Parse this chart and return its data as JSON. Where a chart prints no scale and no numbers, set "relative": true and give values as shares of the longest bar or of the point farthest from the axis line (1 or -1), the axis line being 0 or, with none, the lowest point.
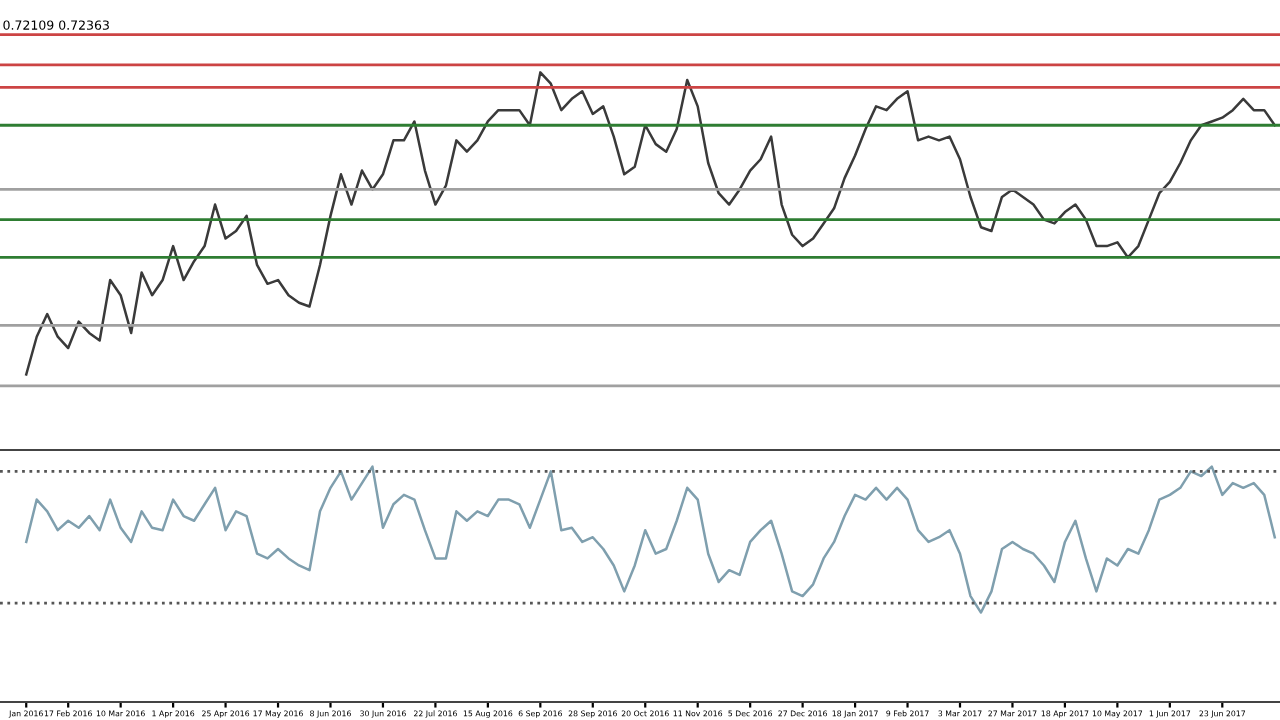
{
  "chart_data": [
    {
      "type": "line",
      "title": "0.72109 0.72363",
      "relative": true,
      "tick_labels": false,
      "grid": false,
      "legend": false,
      "categories": [
        null,
        null,
        null,
        null,
        null,
        null,
        null,
        null,
        null,
        null,
        null,
        null,
        null,
        null,
        null,
        null,
        null,
        null,
        null,
        null,
        null,
        null,
        null,
        null,
        null,
        null,
        null,
        null,
        null,
        null,
        null,
        null,
        null,
        null,
        null,
        null,
        null,
        null,
        null,
        null,
        null,
        null,
        null,
        null,
        null,
        null,
        null,
        null,
        null,
        null,
        null,
        null,
        null,
        null,
        null,
        null,
        null,
        null,
        null,
        null,
        null,
        null,
        null,
        null,
        null,
        null,
        null,
        null,
        null,
        null,
        null,
        null,
        null,
        null,
        null,
        null,
        null,
        null,
        null,
        null,
        null,
        null,
        null,
        null,
        null,
        null,
        null,
        null,
        null,
        null,
        null,
        null,
        null,
        null,
        null,
        null,
        null,
        null,
        null,
        null,
        null,
        null,
        null,
        null,
        null,
        null,
        null,
        null,
        null,
        null,
        null,
        null,
        null,
        null,
        null,
        null,
        null,
        null,
        null,
        null
      ],
      "series": [
        {
          "color": "#3a3a3a",
          "values": [
            0.2,
            0.3,
            0.36,
            0.3,
            0.27,
            0.34,
            0.31,
            0.29,
            0.45,
            0.41,
            0.31,
            0.47,
            0.41,
            0.45,
            0.54,
            0.45,
            0.5,
            0.54,
            0.65,
            0.56,
            0.58,
            0.62,
            0.49,
            0.44,
            0.45,
            0.41,
            0.39,
            0.38,
            0.49,
            0.62,
            0.73,
            0.65,
            0.74,
            0.69,
            0.73,
            0.82,
            0.82,
            0.87,
            0.74,
            0.65,
            0.7,
            0.82,
            0.79,
            0.82,
            0.87,
            0.9,
            0.9,
            0.9,
            0.86,
            1,
            0.97,
            0.9,
            0.93,
            0.95,
            0.89,
            0.91,
            0.83,
            0.73,
            0.75,
            0.86,
            0.81,
            0.79,
            0.85,
            0.98,
            0.91,
            0.76,
            0.68,
            0.65,
            0.69,
            0.74,
            0.77,
            0.83,
            0.65,
            0.57,
            0.54,
            0.56,
            0.6,
            0.64,
            0.72,
            0.78,
            0.85,
            0.91,
            0.9,
            0.93,
            0.95,
            0.82,
            0.83,
            0.82,
            0.83,
            0.77,
            0.67,
            0.59,
            0.58,
            0.67,
            0.69,
            0.67,
            0.65,
            0.61,
            0.6,
            0.63,
            0.65,
            0.61,
            0.54,
            0.54,
            0.55,
            0.51,
            0.54,
            0.61,
            0.68,
            0.71,
            0.76,
            0.82,
            0.86,
            0.87,
            0.88,
            0.9,
            0.93,
            0.9,
            0.9,
            0.86
          ]
        }
      ],
      "ref_lines": [
        {
          "axis": "y",
          "value": 1.1,
          "color": "#cc4444"
        },
        {
          "axis": "y",
          "value": 1.02,
          "color": "#cc4444"
        },
        {
          "axis": "y",
          "value": 0.96,
          "color": "#cc4444"
        },
        {
          "axis": "y",
          "value": 0.86,
          "color": "#2e7d32"
        },
        {
          "axis": "y",
          "value": 0.69,
          "color": "#a0a0a0"
        },
        {
          "axis": "y",
          "value": 0.61,
          "color": "#2e7d32"
        },
        {
          "axis": "y",
          "value": 0.51,
          "color": "#2e7d32"
        },
        {
          "axis": "y",
          "value": 0.33,
          "color": "#a0a0a0"
        },
        {
          "axis": "y",
          "value": 0.17,
          "color": "#a0a0a0"
        }
      ]
    },
    {
      "type": "line",
      "relative": true,
      "tick_labels": "x",
      "grid": false,
      "legend": false,
      "categories": [
        "Jan 2016",
        null,
        null,
        null,
        "17 Feb 2016",
        null,
        null,
        null,
        null,
        "10 Mar 2016",
        null,
        null,
        null,
        null,
        "1 Apr 2016",
        null,
        null,
        null,
        null,
        "25 Apr 2016",
        null,
        null,
        null,
        null,
        "17 May 2016",
        null,
        null,
        null,
        null,
        "8 Jun 2016",
        null,
        null,
        null,
        null,
        "30 Jun 2016",
        null,
        null,
        null,
        null,
        "22 Jul 2016",
        null,
        null,
        null,
        null,
        "15 Aug 2016",
        null,
        null,
        null,
        null,
        "6 Sep 2016",
        null,
        null,
        null,
        null,
        "28 Sep 2016",
        null,
        null,
        null,
        null,
        "20 Oct 2016",
        null,
        null,
        null,
        null,
        "11 Nov 2016",
        null,
        null,
        null,
        null,
        "5 Dec 2016",
        null,
        null,
        null,
        null,
        "27 Dec 2016",
        null,
        null,
        null,
        null,
        "18 Jan 2017",
        null,
        null,
        null,
        null,
        "9 Feb 2017",
        null,
        null,
        null,
        null,
        "3 Mar 2017",
        null,
        null,
        null,
        null,
        "27 Mar 2017",
        null,
        null,
        null,
        null,
        "18 Apr 2017",
        null,
        null,
        null,
        null,
        "10 May 2017",
        null,
        null,
        null,
        null,
        "1 Jun 2017",
        null,
        null,
        null,
        null,
        "23 Jun 2017",
        null,
        null,
        null,
        null,
        null
      ],
      "series": [
        {
          "color": "#7f9fae",
          "values": [
            0.68,
            0.86,
            0.81,
            0.73,
            0.77,
            0.74,
            0.79,
            0.73,
            0.86,
            0.74,
            0.68,
            0.81,
            0.74,
            0.73,
            0.86,
            0.79,
            0.77,
            0.84,
            0.91,
            0.73,
            0.81,
            0.79,
            0.63,
            0.61,
            0.65,
            0.61,
            0.58,
            0.56,
            0.81,
            0.91,
            0.98,
            0.86,
            0.93,
            1,
            0.74,
            0.84,
            0.88,
            0.86,
            0.73,
            0.61,
            0.61,
            0.81,
            0.77,
            0.81,
            0.79,
            0.86,
            0.86,
            0.84,
            0.74,
            0.86,
            0.98,
            0.73,
            0.74,
            0.68,
            0.7,
            0.65,
            0.58,
            0.47,
            0.58,
            0.73,
            0.63,
            0.65,
            0.77,
            0.91,
            0.86,
            0.63,
            0.51,
            0.56,
            0.54,
            0.68,
            0.73,
            0.77,
            0.63,
            0.47,
            0.45,
            0.5,
            0.61,
            0.68,
            0.79,
            0.88,
            0.86,
            0.91,
            0.86,
            0.91,
            0.86,
            0.73,
            0.68,
            0.7,
            0.73,
            0.63,
            0.45,
            0.38,
            0.47,
            0.65,
            0.68,
            0.65,
            0.63,
            0.58,
            0.51,
            0.68,
            0.77,
            0.61,
            0.47,
            0.61,
            0.58,
            0.65,
            0.63,
            0.73,
            0.86,
            0.88,
            0.91,
            0.98,
            0.96,
            1,
            0.88,
            0.93,
            0.91,
            0.93,
            0.88,
            0.7
          ]
        }
      ],
      "ref_lines": [
        {
          "axis": "y",
          "value": 0.98,
          "color": "#555555",
          "line_style": "dotted"
        },
        {
          "axis": "y",
          "value": 0.42,
          "color": "#555555",
          "line_style": "dotted"
        }
      ]
    }
  ]
}
